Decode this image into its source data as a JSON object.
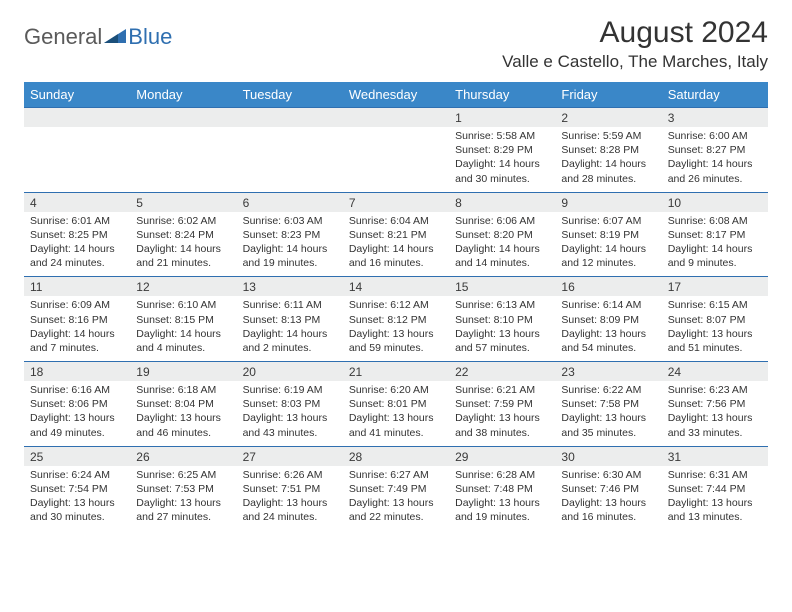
{
  "brand": {
    "word1": "General",
    "word2": "Blue"
  },
  "title": {
    "month": "August 2024",
    "location": "Valle e Castello, The Marches, Italy"
  },
  "colors": {
    "header_bg": "#3a87c8",
    "header_text": "#ffffff",
    "date_bg": "#eceded",
    "row_rule": "#2f6fb0",
    "logo_gray": "#5a5a5a",
    "logo_blue": "#2f6fb0",
    "body_text": "#333333",
    "page_bg": "#ffffff"
  },
  "weekdays": [
    "Sunday",
    "Monday",
    "Tuesday",
    "Wednesday",
    "Thursday",
    "Friday",
    "Saturday"
  ],
  "grid": [
    [
      null,
      null,
      null,
      null,
      {
        "d": "1",
        "rise": "5:58 AM",
        "set": "8:29 PM",
        "dl": "14 hours and 30 minutes."
      },
      {
        "d": "2",
        "rise": "5:59 AM",
        "set": "8:28 PM",
        "dl": "14 hours and 28 minutes."
      },
      {
        "d": "3",
        "rise": "6:00 AM",
        "set": "8:27 PM",
        "dl": "14 hours and 26 minutes."
      }
    ],
    [
      {
        "d": "4",
        "rise": "6:01 AM",
        "set": "8:25 PM",
        "dl": "14 hours and 24 minutes."
      },
      {
        "d": "5",
        "rise": "6:02 AM",
        "set": "8:24 PM",
        "dl": "14 hours and 21 minutes."
      },
      {
        "d": "6",
        "rise": "6:03 AM",
        "set": "8:23 PM",
        "dl": "14 hours and 19 minutes."
      },
      {
        "d": "7",
        "rise": "6:04 AM",
        "set": "8:21 PM",
        "dl": "14 hours and 16 minutes."
      },
      {
        "d": "8",
        "rise": "6:06 AM",
        "set": "8:20 PM",
        "dl": "14 hours and 14 minutes."
      },
      {
        "d": "9",
        "rise": "6:07 AM",
        "set": "8:19 PM",
        "dl": "14 hours and 12 minutes."
      },
      {
        "d": "10",
        "rise": "6:08 AM",
        "set": "8:17 PM",
        "dl": "14 hours and 9 minutes."
      }
    ],
    [
      {
        "d": "11",
        "rise": "6:09 AM",
        "set": "8:16 PM",
        "dl": "14 hours and 7 minutes."
      },
      {
        "d": "12",
        "rise": "6:10 AM",
        "set": "8:15 PM",
        "dl": "14 hours and 4 minutes."
      },
      {
        "d": "13",
        "rise": "6:11 AM",
        "set": "8:13 PM",
        "dl": "14 hours and 2 minutes."
      },
      {
        "d": "14",
        "rise": "6:12 AM",
        "set": "8:12 PM",
        "dl": "13 hours and 59 minutes."
      },
      {
        "d": "15",
        "rise": "6:13 AM",
        "set": "8:10 PM",
        "dl": "13 hours and 57 minutes."
      },
      {
        "d": "16",
        "rise": "6:14 AM",
        "set": "8:09 PM",
        "dl": "13 hours and 54 minutes."
      },
      {
        "d": "17",
        "rise": "6:15 AM",
        "set": "8:07 PM",
        "dl": "13 hours and 51 minutes."
      }
    ],
    [
      {
        "d": "18",
        "rise": "6:16 AM",
        "set": "8:06 PM",
        "dl": "13 hours and 49 minutes."
      },
      {
        "d": "19",
        "rise": "6:18 AM",
        "set": "8:04 PM",
        "dl": "13 hours and 46 minutes."
      },
      {
        "d": "20",
        "rise": "6:19 AM",
        "set": "8:03 PM",
        "dl": "13 hours and 43 minutes."
      },
      {
        "d": "21",
        "rise": "6:20 AM",
        "set": "8:01 PM",
        "dl": "13 hours and 41 minutes."
      },
      {
        "d": "22",
        "rise": "6:21 AM",
        "set": "7:59 PM",
        "dl": "13 hours and 38 minutes."
      },
      {
        "d": "23",
        "rise": "6:22 AM",
        "set": "7:58 PM",
        "dl": "13 hours and 35 minutes."
      },
      {
        "d": "24",
        "rise": "6:23 AM",
        "set": "7:56 PM",
        "dl": "13 hours and 33 minutes."
      }
    ],
    [
      {
        "d": "25",
        "rise": "6:24 AM",
        "set": "7:54 PM",
        "dl": "13 hours and 30 minutes."
      },
      {
        "d": "26",
        "rise": "6:25 AM",
        "set": "7:53 PM",
        "dl": "13 hours and 27 minutes."
      },
      {
        "d": "27",
        "rise": "6:26 AM",
        "set": "7:51 PM",
        "dl": "13 hours and 24 minutes."
      },
      {
        "d": "28",
        "rise": "6:27 AM",
        "set": "7:49 PM",
        "dl": "13 hours and 22 minutes."
      },
      {
        "d": "29",
        "rise": "6:28 AM",
        "set": "7:48 PM",
        "dl": "13 hours and 19 minutes."
      },
      {
        "d": "30",
        "rise": "6:30 AM",
        "set": "7:46 PM",
        "dl": "13 hours and 16 minutes."
      },
      {
        "d": "31",
        "rise": "6:31 AM",
        "set": "7:44 PM",
        "dl": "13 hours and 13 minutes."
      }
    ]
  ],
  "labels": {
    "sunrise": "Sunrise: ",
    "sunset": "Sunset: ",
    "daylight": "Daylight: "
  }
}
